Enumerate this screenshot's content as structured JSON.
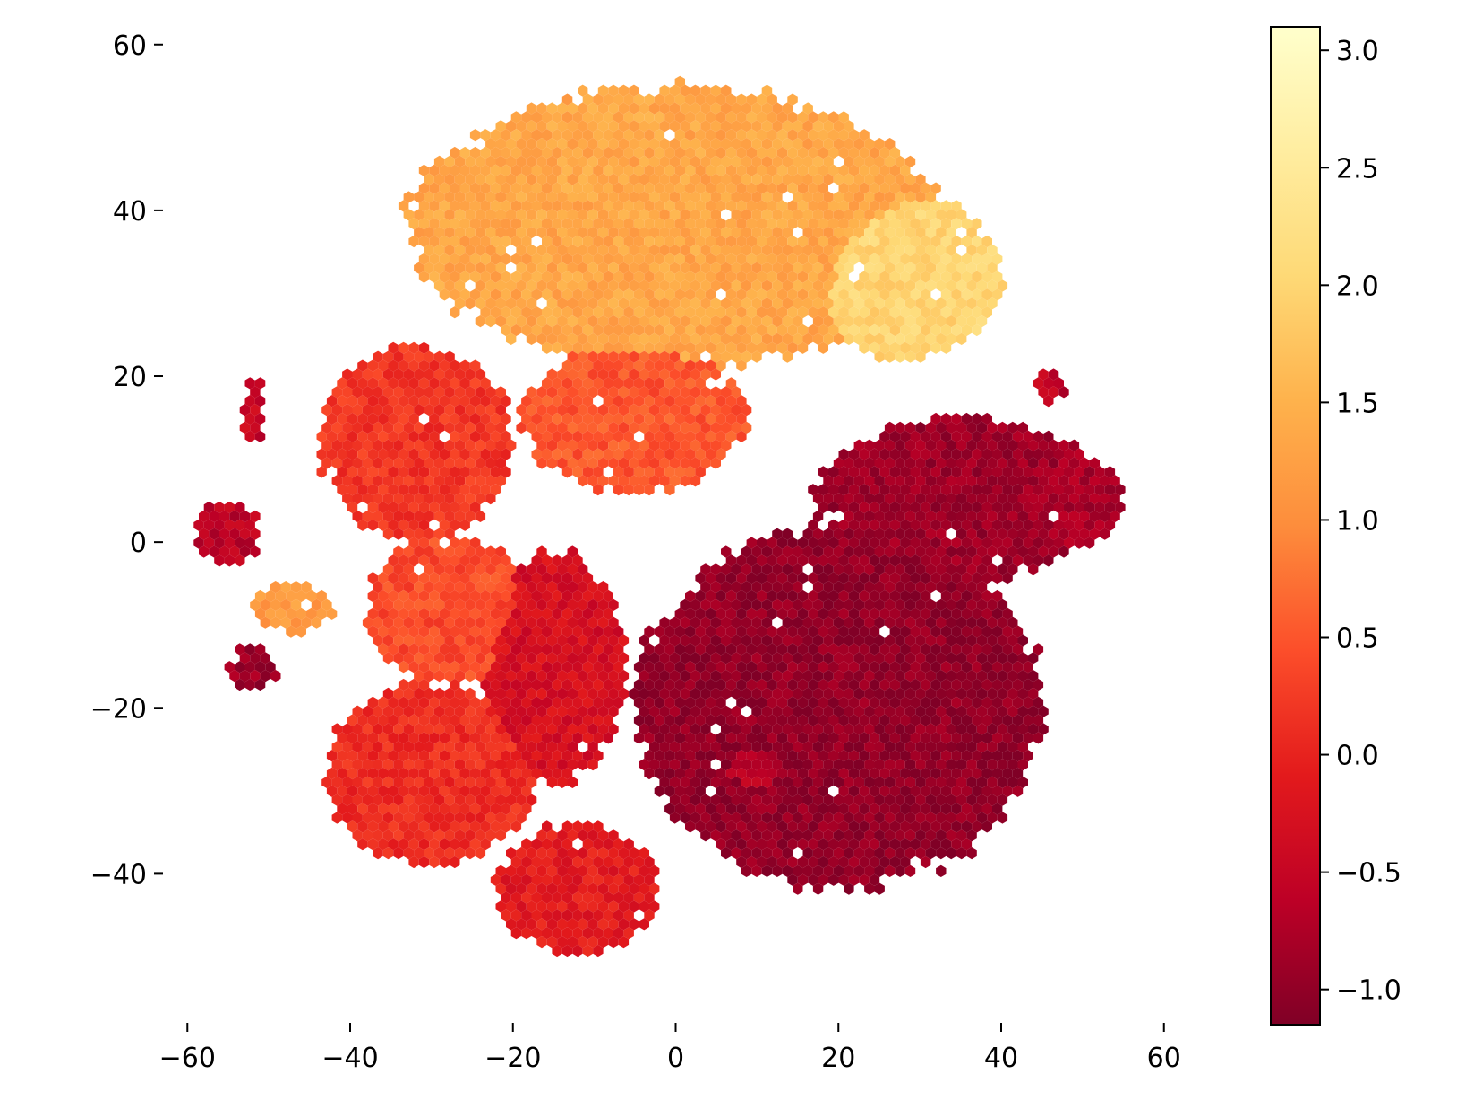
{
  "chart_data": {
    "type": "heatmap",
    "subtype": "hexbin",
    "colormap": "YlOrRd_r",
    "colormap_stops": [
      "#800026",
      "#bd0026",
      "#e31a1c",
      "#fc4e2a",
      "#fd8d3c",
      "#feb24c",
      "#fed976",
      "#ffeda0",
      "#ffffcc"
    ],
    "title": "",
    "xlabel": "",
    "ylabel": "",
    "xlim": [
      -63,
      63
    ],
    "ylim": [
      -58,
      63
    ],
    "xticks": [
      -60,
      -40,
      -20,
      0,
      20,
      40,
      60
    ],
    "xtick_labels": [
      "−60",
      "−40",
      "−20",
      "0",
      "20",
      "40",
      "60"
    ],
    "yticks": [
      -40,
      -20,
      0,
      20,
      40,
      60
    ],
    "ytick_labels": [
      "−40",
      "−20",
      "0",
      "20",
      "40",
      "60"
    ],
    "grid": false,
    "colorbar": {
      "location": "right",
      "range": [
        -1.15,
        3.1
      ],
      "ticks": [
        -1.0,
        -0.5,
        0.0,
        0.5,
        1.0,
        1.5,
        2.0,
        2.5,
        3.0
      ],
      "tick_labels": [
        "−1.0",
        "−0.5",
        "0.0",
        "0.5",
        "1.0",
        "1.5",
        "2.0",
        "2.5",
        "3.0"
      ]
    },
    "regions": [
      {
        "center": [
          0,
          38
        ],
        "radii": [
          33,
          17
        ],
        "value": 1.35
      },
      {
        "center": [
          28,
          32
        ],
        "radii": [
          12,
          10
        ],
        "value": 2.0
      },
      {
        "center": [
          -5,
          15
        ],
        "radii": [
          14,
          9
        ],
        "value": 0.5
      },
      {
        "center": [
          -32,
          12
        ],
        "radii": [
          12,
          12
        ],
        "value": 0.2
      },
      {
        "center": [
          -28,
          -8
        ],
        "radii": [
          10,
          9
        ],
        "value": 0.4
      },
      {
        "center": [
          -30,
          -28
        ],
        "radii": [
          13,
          11
        ],
        "value": 0.1
      },
      {
        "center": [
          -15,
          -15
        ],
        "radii": [
          9,
          14
        ],
        "value": -0.3
      },
      {
        "center": [
          -12,
          -42
        ],
        "radii": [
          10,
          8
        ],
        "value": -0.1
      },
      {
        "center": [
          -55,
          1
        ],
        "radii": [
          4,
          4
        ],
        "value": -0.6
      },
      {
        "center": [
          -47,
          -8
        ],
        "radii": [
          5,
          3
        ],
        "value": 1.2
      },
      {
        "center": [
          -52,
          -15
        ],
        "radii": [
          3,
          3
        ],
        "value": -0.9
      },
      {
        "center": [
          20,
          -20
        ],
        "radii": [
          25,
          22
        ],
        "value": -1.0
      },
      {
        "center": [
          35,
          5
        ],
        "radii": [
          18,
          10
        ],
        "value": -0.9
      },
      {
        "center": [
          48,
          5
        ],
        "radii": [
          7,
          6
        ],
        "value": -0.8
      },
      {
        "center": [
          10,
          -27
        ],
        "radii": [
          6,
          4
        ],
        "value": -0.6
      },
      {
        "center": [
          46,
          19
        ],
        "radii": [
          2,
          2
        ],
        "value": -0.6
      },
      {
        "center": [
          -52,
          15
        ],
        "radii": [
          1.5,
          3
        ],
        "value": -0.5
      },
      {
        "center": [
          -52,
          19
        ],
        "radii": [
          1,
          1
        ],
        "value": -0.5
      }
    ]
  }
}
